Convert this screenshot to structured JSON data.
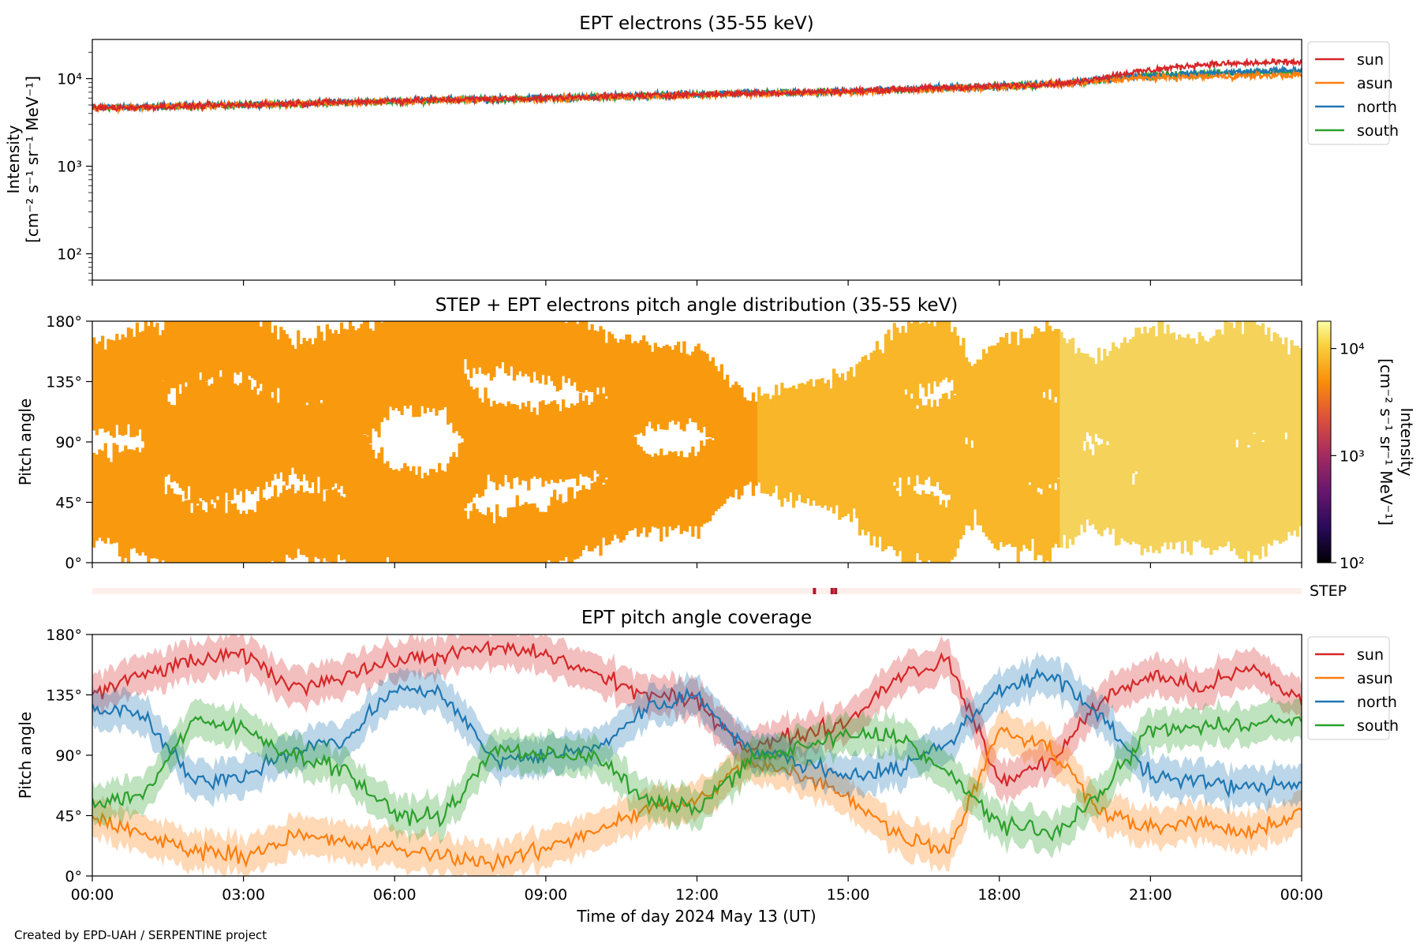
{
  "footer": {
    "credit": "Created by EPD-UAH / SERPENTINE project"
  },
  "xaxis": {
    "label": "Time of day 2024 May 13 (UT)",
    "ticks": [
      "00:00",
      "03:00",
      "06:00",
      "09:00",
      "12:00",
      "15:00",
      "18:00",
      "21:00",
      "00:00"
    ],
    "range_hours": [
      0,
      24
    ]
  },
  "colors": {
    "sun": "#d62728",
    "asun": "#ff7f0e",
    "north": "#1f77b4",
    "south": "#2ca02c"
  },
  "chart_data": [
    {
      "type": "line",
      "title": "EPT electrons (35-55 keV)",
      "ylabel_top": "Intensity",
      "ylabel_bottom": "[cm⁻² s⁻¹ sr⁻¹ MeV⁻¹]",
      "yscale": "log",
      "ylim": [
        50,
        28000
      ],
      "yticks": [
        {
          "value": 100,
          "label": "10²"
        },
        {
          "value": 1000,
          "label": "10³"
        },
        {
          "value": 10000,
          "label": "10⁴"
        }
      ],
      "legend": "top-right outside",
      "x_hours": [
        0,
        3,
        6,
        9,
        12,
        15,
        18,
        19.5,
        20.5,
        22,
        24
      ],
      "series": [
        {
          "name": "sun",
          "values": [
            4600,
            5000,
            5600,
            6000,
            6600,
            7200,
            8200,
            9000,
            11500,
            14500,
            15500
          ]
        },
        {
          "name": "asun",
          "values": [
            4600,
            5000,
            5500,
            5900,
            6500,
            7000,
            8000,
            8800,
            10000,
            10500,
            11000
          ]
        },
        {
          "name": "north",
          "values": [
            4700,
            5000,
            5600,
            6000,
            6700,
            7200,
            8200,
            9000,
            10500,
            11500,
            12500
          ]
        },
        {
          "name": "south",
          "values": [
            4600,
            5000,
            5500,
            5900,
            6600,
            7100,
            8100,
            8900,
            10500,
            11500,
            12000
          ]
        }
      ]
    },
    {
      "type": "heatmap",
      "title": "STEP + EPT electrons pitch angle distribution (35-55 keV)",
      "ylabel": "Pitch angle",
      "ylim": [
        0,
        180
      ],
      "yticks": [
        "0°",
        "45°",
        "90°",
        "135°",
        "180°"
      ],
      "colorbar": {
        "label_top": "Intensity",
        "label_bottom": "[cm⁻² s⁻¹ sr⁻¹ MeV⁻¹]",
        "scale": "log",
        "range": [
          100,
          18000
        ],
        "ticks": [
          {
            "value": 100,
            "label": "10²"
          },
          {
            "value": 1000,
            "label": "10³"
          },
          {
            "value": 10000,
            "label": "10⁴"
          }
        ]
      },
      "step_strip": {
        "label": "STEP",
        "marks_hours": [
          14.3,
          14.65,
          14.72
        ]
      }
    },
    {
      "type": "line",
      "title": "EPT pitch angle coverage",
      "ylabel": "Pitch angle",
      "ylim": [
        0,
        180
      ],
      "yticks": [
        "0°",
        "45°",
        "90°",
        "135°",
        "180°"
      ],
      "legend": "top-right outside",
      "x_hours": [
        0,
        1,
        2,
        3,
        4,
        5,
        6,
        7,
        8,
        9,
        10,
        11,
        12,
        13,
        14,
        15,
        16,
        17,
        18,
        19,
        20,
        21,
        22,
        23,
        24
      ],
      "series": [
        {
          "name": "sun",
          "values": [
            135,
            150,
            160,
            165,
            140,
            150,
            160,
            165,
            170,
            165,
            150,
            135,
            130,
            95,
            105,
            115,
            150,
            160,
            70,
            85,
            130,
            150,
            140,
            155,
            130
          ]
        },
        {
          "name": "asun",
          "values": [
            45,
            30,
            20,
            15,
            30,
            25,
            20,
            15,
            10,
            20,
            35,
            50,
            55,
            85,
            75,
            60,
            30,
            20,
            110,
            95,
            50,
            35,
            40,
            30,
            50
          ]
        },
        {
          "name": "north",
          "values": [
            125,
            120,
            70,
            75,
            95,
            100,
            140,
            135,
            85,
            90,
            95,
            125,
            135,
            95,
            85,
            75,
            80,
            100,
            140,
            150,
            120,
            75,
            70,
            65,
            70
          ]
        },
        {
          "name": "south",
          "values": [
            55,
            60,
            115,
            110,
            90,
            80,
            45,
            45,
            95,
            90,
            90,
            55,
            50,
            85,
            95,
            105,
            105,
            75,
            40,
            30,
            60,
            110,
            110,
            115,
            115
          ]
        }
      ]
    }
  ]
}
